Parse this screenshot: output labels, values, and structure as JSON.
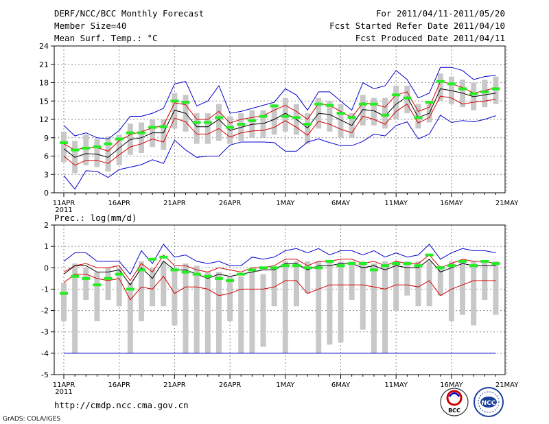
{
  "header": {
    "line1_left": "DERF/NCC/BCC Monthly Forecast",
    "line2_left": "Member Size=40",
    "line3_left": "Mean Surf. Temp.: °C",
    "line1_right": "For 2011/04/11-2011/05/20",
    "line2_right": "Fcst Started Refer Date 2011/04/10",
    "line3_right": "Fcst Produced Date 2011/04/11"
  },
  "footer": {
    "url": "http://cmdp.ncc.cma.gov.cn",
    "grads": "GrADS: COLA/IGES",
    "logo_left": "BCC",
    "logo_right": "NCC"
  },
  "colors": {
    "mean": "#000000",
    "spread": "#d40000",
    "extreme": "#0000cc",
    "box": "#c8c8c8",
    "median": "#22ee22",
    "grid": "#888888"
  },
  "chart_data": [
    {
      "type": "line",
      "title": "Mean Surf. Temp.: °C",
      "ylim": [
        0,
        24
      ],
      "yticks": [
        0,
        3,
        6,
        9,
        12,
        15,
        18,
        21,
        24
      ],
      "xlim": [
        0,
        40
      ],
      "xtick_labels": [
        "11APR",
        "16APR",
        "21APR",
        "26APR",
        "1MAY",
        "6MAY",
        "11MAY",
        "16MAY",
        "21MAY"
      ],
      "xtick_year": "2011",
      "x": [
        0,
        1,
        2,
        3,
        4,
        5,
        6,
        7,
        8,
        9,
        10,
        11,
        12,
        13,
        14,
        15,
        16,
        17,
        18,
        19,
        20,
        21,
        22,
        23,
        24,
        25,
        26,
        27,
        28,
        29,
        30,
        31,
        32,
        33,
        34,
        35,
        36,
        37,
        38,
        39
      ],
      "series": [
        {
          "name": "max",
          "values": [
            11.0,
            9.3,
            9.8,
            9.0,
            8.8,
            10.2,
            12.5,
            12.5,
            13.0,
            13.8,
            17.8,
            18.2,
            14.2,
            15.0,
            17.5,
            13.0,
            13.3,
            13.8,
            14.3,
            14.8,
            17.0,
            16.0,
            13.5,
            16.5,
            16.5,
            15.0,
            13.5,
            18.0,
            17.0,
            17.5,
            20.0,
            18.5,
            15.5,
            16.3,
            20.5,
            20.5,
            20.0,
            18.5,
            19.0,
            19.2
          ]
        },
        {
          "name": "upper",
          "values": [
            8.0,
            7.0,
            7.4,
            7.4,
            6.8,
            8.5,
            9.5,
            10.0,
            10.6,
            11.0,
            14.7,
            14.4,
            12.0,
            12.0,
            13.3,
            11.4,
            12.0,
            12.3,
            12.6,
            13.5,
            14.3,
            13.3,
            12.0,
            14.6,
            14.3,
            13.3,
            12.3,
            14.7,
            14.5,
            14.0,
            16.0,
            16.5,
            13.3,
            14.0,
            18.2,
            17.8,
            17.2,
            16.3,
            16.7,
            17.2
          ]
        },
        {
          "name": "mean",
          "values": [
            7.2,
            5.8,
            6.4,
            6.3,
            5.8,
            7.3,
            8.7,
            9.0,
            9.8,
            9.8,
            13.5,
            13.0,
            10.8,
            10.8,
            12.0,
            10.2,
            10.7,
            11.2,
            11.3,
            12.0,
            13.0,
            12.0,
            10.6,
            13.0,
            12.8,
            11.9,
            11.0,
            13.6,
            13.4,
            12.5,
            14.5,
            15.7,
            12.3,
            13.0,
            17.0,
            16.7,
            16.3,
            15.7,
            16.0,
            16.3
          ]
        },
        {
          "name": "lower",
          "values": [
            6.0,
            4.5,
            5.3,
            5.3,
            4.8,
            6.2,
            7.5,
            8.0,
            8.8,
            8.3,
            12.2,
            11.6,
            9.6,
            9.6,
            10.5,
            9.1,
            9.8,
            10.1,
            10.2,
            10.7,
            11.8,
            10.7,
            9.4,
            11.7,
            11.2,
            10.4,
            9.8,
            12.5,
            12.0,
            11.2,
            13.3,
            14.5,
            11.4,
            12.3,
            15.8,
            15.5,
            14.5,
            14.8,
            15.0,
            15.3
          ]
        },
        {
          "name": "min",
          "values": [
            2.8,
            0.6,
            3.6,
            3.5,
            2.5,
            3.8,
            4.2,
            4.6,
            5.4,
            4.8,
            8.6,
            7.0,
            5.8,
            6.0,
            6.0,
            7.8,
            8.3,
            8.3,
            8.3,
            8.2,
            6.8,
            6.8,
            8.3,
            8.8,
            8.2,
            7.7,
            7.7,
            8.4,
            9.6,
            9.3,
            11.0,
            11.6,
            8.8,
            9.6,
            12.7,
            11.5,
            11.8,
            11.6,
            12.0,
            12.6
          ]
        }
      ],
      "box_low": [
        5.0,
        3.2,
        4.5,
        4.2,
        3.5,
        4.5,
        6.2,
        6.5,
        7.5,
        7.0,
        10.5,
        10.0,
        8.0,
        8.0,
        8.5,
        8.0,
        8.5,
        9.0,
        9.0,
        9.5,
        10.0,
        9.5,
        8.0,
        10.5,
        10.0,
        9.0,
        9.0,
        11.0,
        11.0,
        10.5,
        12.0,
        13.0,
        10.5,
        11.5,
        15.0,
        14.5,
        14.0,
        13.5,
        14.0,
        14.5
      ],
      "box_high": [
        10.0,
        8.5,
        9.5,
        8.8,
        9.2,
        9.5,
        11.3,
        11.5,
        12.0,
        12.0,
        16.3,
        16.0,
        13.0,
        13.0,
        14.5,
        12.5,
        13.0,
        13.5,
        13.5,
        14.5,
        15.5,
        14.5,
        13.0,
        15.5,
        15.0,
        14.5,
        13.0,
        16.0,
        15.5,
        15.5,
        17.5,
        17.5,
        14.5,
        15.0,
        19.5,
        19.0,
        18.5,
        18.0,
        18.5,
        19.0
      ],
      "median": [
        8.2,
        7.0,
        7.3,
        7.5,
        8.0,
        8.8,
        9.8,
        9.8,
        10.7,
        10.8,
        15.0,
        14.8,
        11.5,
        11.5,
        12.3,
        10.7,
        11.2,
        11.8,
        12.5,
        14.2,
        12.5,
        12.3,
        11.2,
        14.5,
        14.3,
        13.0,
        12.3,
        14.5,
        14.5,
        12.7,
        16.0,
        15.5,
        12.3,
        14.8,
        18.2,
        17.8,
        17.0,
        16.2,
        16.5,
        17.0
      ]
    },
    {
      "type": "line",
      "title": "Prec.: log(mm/d)",
      "ylim": [
        -5,
        2
      ],
      "yticks": [
        -5,
        -4,
        -3,
        -2,
        -1,
        0,
        1,
        2
      ],
      "xlim": [
        0,
        40
      ],
      "xtick_labels": [
        "11APR",
        "16APR",
        "21APR",
        "26APR",
        "1MAY",
        "6MAY",
        "11MAY",
        "16MAY",
        "21MAY"
      ],
      "xtick_year": "2011",
      "x": [
        0,
        1,
        2,
        3,
        4,
        5,
        6,
        7,
        8,
        9,
        10,
        11,
        12,
        13,
        14,
        15,
        16,
        17,
        18,
        19,
        20,
        21,
        22,
        23,
        24,
        25,
        26,
        27,
        28,
        29,
        30,
        31,
        32,
        33,
        34,
        35,
        36,
        37,
        38,
        39
      ],
      "series": [
        {
          "name": "max",
          "values": [
            0.3,
            0.7,
            0.7,
            0.3,
            0.3,
            0.3,
            -0.3,
            0.8,
            0.2,
            1.1,
            0.5,
            0.6,
            0.3,
            0.2,
            0.3,
            0.1,
            0.1,
            0.5,
            0.4,
            0.5,
            0.8,
            0.9,
            0.7,
            0.9,
            0.6,
            0.8,
            0.8,
            0.6,
            0.8,
            0.5,
            0.7,
            0.5,
            0.6,
            1.1,
            0.4,
            0.7,
            0.9,
            0.8,
            0.8,
            0.7
          ]
        },
        {
          "name": "upper",
          "values": [
            -0.2,
            0.1,
            0.2,
            0.0,
            0.0,
            0.1,
            -0.6,
            0.2,
            -0.2,
            0.6,
            0.1,
            0.1,
            -0.1,
            -0.2,
            0.0,
            -0.1,
            -0.2,
            0.0,
            0.0,
            0.1,
            0.4,
            0.4,
            0.1,
            0.3,
            0.3,
            0.4,
            0.4,
            0.2,
            0.3,
            0.1,
            0.3,
            0.2,
            0.2,
            0.6,
            0.0,
            0.2,
            0.4,
            0.3,
            0.3,
            0.2
          ]
        },
        {
          "name": "mean",
          "values": [
            -0.3,
            0.1,
            0.1,
            -0.2,
            -0.2,
            -0.1,
            -0.8,
            0.0,
            -0.5,
            0.3,
            -0.1,
            -0.1,
            -0.3,
            -0.5,
            -0.3,
            -0.4,
            -0.3,
            -0.2,
            -0.1,
            -0.1,
            0.2,
            0.2,
            -0.1,
            0.1,
            0.1,
            0.2,
            0.2,
            0.0,
            0.1,
            -0.1,
            0.1,
            0.0,
            0.0,
            0.4,
            -0.2,
            0.0,
            0.2,
            0.1,
            0.1,
            0.1
          ]
        },
        {
          "name": "lower",
          "values": [
            -0.7,
            -0.3,
            -0.3,
            -0.5,
            -0.6,
            -0.5,
            -1.5,
            -0.9,
            -1.0,
            -0.4,
            -1.2,
            -0.9,
            -0.9,
            -1.0,
            -1.3,
            -1.2,
            -1.0,
            -1.0,
            -1.0,
            -0.9,
            -0.6,
            -0.6,
            -1.2,
            -1.0,
            -0.8,
            -0.8,
            -0.8,
            -0.8,
            -0.9,
            -1.0,
            -0.8,
            -0.8,
            -0.9,
            -0.6,
            -1.3,
            -1.0,
            -0.8,
            -0.6,
            -0.6,
            -0.6
          ]
        },
        {
          "name": "min",
          "values": [
            -4.0,
            -4.0,
            -4.0,
            -4.0,
            -4.0,
            -4.0,
            -4.0,
            -4.0,
            -4.0,
            -4.0,
            -4.0,
            -4.0,
            -4.0,
            -4.0,
            -4.0,
            -4.0,
            -4.0,
            -4.0,
            -4.0,
            -4.0,
            -4.0,
            -4.0,
            -4.0,
            -4.0,
            -4.0,
            -4.0,
            -4.0,
            -4.0,
            -4.0,
            -4.0,
            -4.0,
            -4.0,
            -4.0,
            -4.0,
            -4.0,
            -4.0,
            -4.0,
            -4.0,
            -4.0,
            -4.0
          ]
        }
      ],
      "box_low": [
        -2.5,
        -4.0,
        -1.5,
        -2.5,
        -1.5,
        -1.8,
        -4.0,
        -2.5,
        -1.8,
        -1.8,
        -2.7,
        -4.0,
        -4.0,
        -4.0,
        -4.0,
        -2.5,
        -4.0,
        -4.0,
        -3.7,
        -1.8,
        -4.0,
        -1.8,
        -1.2,
        -4.0,
        -3.6,
        -3.5,
        -1.5,
        -2.9,
        -4.0,
        -4.0,
        -2.0,
        -1.3,
        -1.8,
        -1.8,
        -1.3,
        -2.5,
        -2.2,
        -2.7,
        -1.5,
        -2.2
      ],
      "box_high": [
        -0.7,
        0.2,
        0.0,
        -0.2,
        0.0,
        0.0,
        -0.7,
        0.3,
        0.0,
        0.3,
        0.0,
        0.2,
        0.1,
        -0.2,
        -0.2,
        -0.4,
        -0.4,
        -0.2,
        -0.3,
        0.0,
        0.3,
        0.3,
        0.3,
        0.3,
        0.3,
        0.3,
        0.3,
        0.3,
        0.2,
        0.3,
        0.3,
        0.3,
        0.3,
        0.3,
        0.1,
        0.3,
        0.3,
        0.3,
        0.3,
        0.3
      ],
      "median": [
        -1.2,
        -0.4,
        -0.5,
        -0.8,
        -0.5,
        -0.3,
        -1.0,
        -0.1,
        0.4,
        0.5,
        -0.1,
        -0.2,
        -0.3,
        -0.4,
        -0.5,
        -0.6,
        -0.3,
        -0.1,
        0.0,
        0.0,
        0.1,
        0.1,
        0.0,
        0.0,
        0.3,
        0.1,
        0.2,
        0.2,
        -0.1,
        0.1,
        0.2,
        0.2,
        0.1,
        0.6,
        0.0,
        0.1,
        0.3,
        0.1,
        0.3,
        0.2
      ]
    }
  ]
}
